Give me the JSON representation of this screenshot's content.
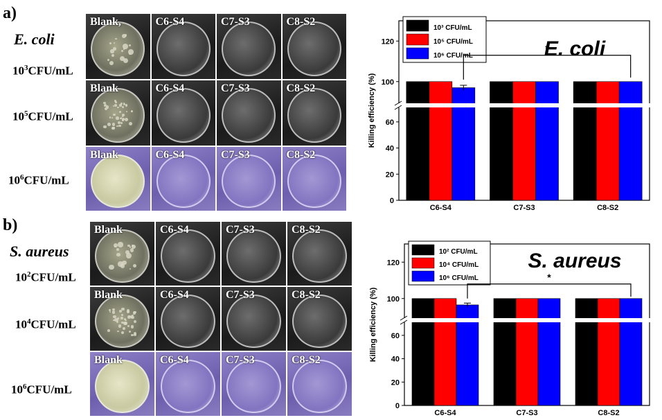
{
  "panels": [
    {
      "letter": "a)",
      "species": "E. coli",
      "rows": [
        {
          "label_mantissa": "10",
          "label_exp": "3",
          "label_unit": "CFU/mL",
          "plates": [
            "Blank,",
            "C6-S4",
            "C7-S3",
            "C8-S2"
          ],
          "style": "dark"
        },
        {
          "label_mantissa": "10",
          "label_exp": "5",
          "label_unit": "CFU/mL",
          "plates": [
            "Blank",
            "C6-S4",
            "C7-S3",
            "C8-S2"
          ],
          "style": "dark"
        },
        {
          "label_mantissa": "10",
          "label_exp": "6",
          "label_unit": "CFU/mL",
          "plates": [
            "Blank",
            "C6-S4",
            "C7-S3",
            "C8-S2"
          ],
          "style": "purple"
        }
      ]
    },
    {
      "letter": "b)",
      "species": "S. aureus",
      "rows": [
        {
          "label_mantissa": "10",
          "label_exp": "2",
          "label_unit": "CFU/mL",
          "plates": [
            "Blank",
            "C6-S4",
            "C7-S3",
            "C8-S2"
          ],
          "style": "dark"
        },
        {
          "label_mantissa": "10",
          "label_exp": "4",
          "label_unit": "CFU/mL",
          "plates": [
            "Blank",
            "C6-S4",
            "C7-S3",
            "C8-S2"
          ],
          "style": "dark"
        },
        {
          "label_mantissa": "10",
          "label_exp": "6",
          "label_unit": "CFU/mL",
          "plates": [
            "Blank",
            "C6-S4",
            "C7-S3",
            "C8-S2"
          ],
          "style": "purple"
        }
      ]
    }
  ],
  "chart_data": [
    {
      "type": "bar",
      "title": "E. coli",
      "ylabel": "Killing efficiency (%)",
      "categories": [
        "C6-S4",
        "C7-S3",
        "C8-S2"
      ],
      "series": [
        {
          "name": "10³ CFU/mL",
          "color": "#000000",
          "values": [
            100,
            100,
            100
          ]
        },
        {
          "name": "10⁵ CFU/mL",
          "color": "#ff0000",
          "values": [
            100,
            100,
            100
          ]
        },
        {
          "name": "10⁶ CFU/mL",
          "color": "#0000ff",
          "values": [
            97,
            100,
            100
          ]
        }
      ],
      "errors": [
        [
          0,
          0,
          0
        ],
        [
          0,
          0,
          0
        ],
        [
          1.2,
          0,
          0
        ]
      ],
      "ylim": [
        0,
        130
      ],
      "axis_break": [
        70,
        90
      ],
      "yticks_lower": [
        0,
        20,
        40,
        60
      ],
      "yticks_upper": [
        100,
        120
      ],
      "significance": {
        "label": "*",
        "from": "C6-S4",
        "to": "C8-S2"
      },
      "legend_position": "top-left"
    },
    {
      "type": "bar",
      "title": "S. aureus",
      "ylabel": "Killing efficiency (%)",
      "categories": [
        "C6-S4",
        "C7-S3",
        "C8-S2"
      ],
      "series": [
        {
          "name": "10² CFU/mL",
          "color": "#000000",
          "values": [
            100,
            100,
            100
          ]
        },
        {
          "name": "10⁴ CFU/mL",
          "color": "#ff0000",
          "values": [
            100,
            100,
            100
          ]
        },
        {
          "name": "10⁶ CFU/mL",
          "color": "#0000ff",
          "values": [
            96.5,
            100,
            100
          ]
        }
      ],
      "errors": [
        [
          0,
          0,
          0
        ],
        [
          0,
          0,
          0
        ],
        [
          1,
          0,
          0
        ]
      ],
      "ylim": [
        0,
        130
      ],
      "axis_break": [
        70,
        90
      ],
      "yticks_lower": [
        0,
        20,
        40,
        60
      ],
      "yticks_upper": [
        100,
        120
      ],
      "significance": {
        "label": "*",
        "from": "C6-S4",
        "to": "C8-S2"
      },
      "legend_position": "top-left"
    }
  ]
}
